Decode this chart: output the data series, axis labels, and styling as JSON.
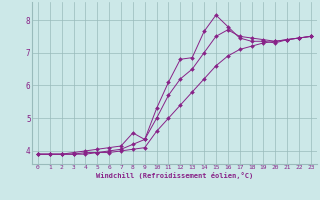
{
  "xlabel": "Windchill (Refroidissement éolien,°C)",
  "bg_color": "#cce8e8",
  "grid_color": "#99bbbb",
  "line_color": "#882288",
  "xlim": [
    -0.5,
    23.5
  ],
  "ylim": [
    3.6,
    8.55
  ],
  "yticks": [
    4,
    5,
    6,
    7,
    8
  ],
  "xticks": [
    0,
    1,
    2,
    3,
    4,
    5,
    6,
    7,
    8,
    9,
    10,
    11,
    12,
    13,
    14,
    15,
    16,
    17,
    18,
    19,
    20,
    21,
    22,
    23
  ],
  "line1_x": [
    0,
    1,
    2,
    3,
    4,
    5,
    6,
    7,
    8,
    9,
    10,
    11,
    12,
    13,
    14,
    15,
    16,
    17,
    18,
    19,
    20,
    21,
    22,
    23
  ],
  "line1_y": [
    3.9,
    3.9,
    3.9,
    3.9,
    3.95,
    3.95,
    4.0,
    4.05,
    4.2,
    4.35,
    5.3,
    6.1,
    6.8,
    6.85,
    7.65,
    8.15,
    7.8,
    7.45,
    7.35,
    7.35,
    7.3,
    7.4,
    7.45,
    7.5
  ],
  "line2_x": [
    0,
    1,
    2,
    3,
    4,
    5,
    6,
    7,
    8,
    9,
    10,
    11,
    12,
    13,
    14,
    15,
    16,
    17,
    18,
    19,
    20,
    21,
    22,
    23
  ],
  "line2_y": [
    3.9,
    3.9,
    3.9,
    3.95,
    4.0,
    4.05,
    4.1,
    4.15,
    4.55,
    4.35,
    5.0,
    5.7,
    6.2,
    6.5,
    7.0,
    7.5,
    7.7,
    7.5,
    7.45,
    7.4,
    7.35,
    7.4,
    7.45,
    7.5
  ],
  "line3_x": [
    0,
    1,
    2,
    3,
    4,
    5,
    6,
    7,
    8,
    9,
    10,
    11,
    12,
    13,
    14,
    15,
    16,
    17,
    18,
    19,
    20,
    21,
    22,
    23
  ],
  "line3_y": [
    3.9,
    3.9,
    3.9,
    3.9,
    3.9,
    3.95,
    3.95,
    4.0,
    4.05,
    4.1,
    4.6,
    5.0,
    5.4,
    5.8,
    6.2,
    6.6,
    6.9,
    7.1,
    7.2,
    7.3,
    7.35,
    7.4,
    7.45,
    7.5
  ]
}
